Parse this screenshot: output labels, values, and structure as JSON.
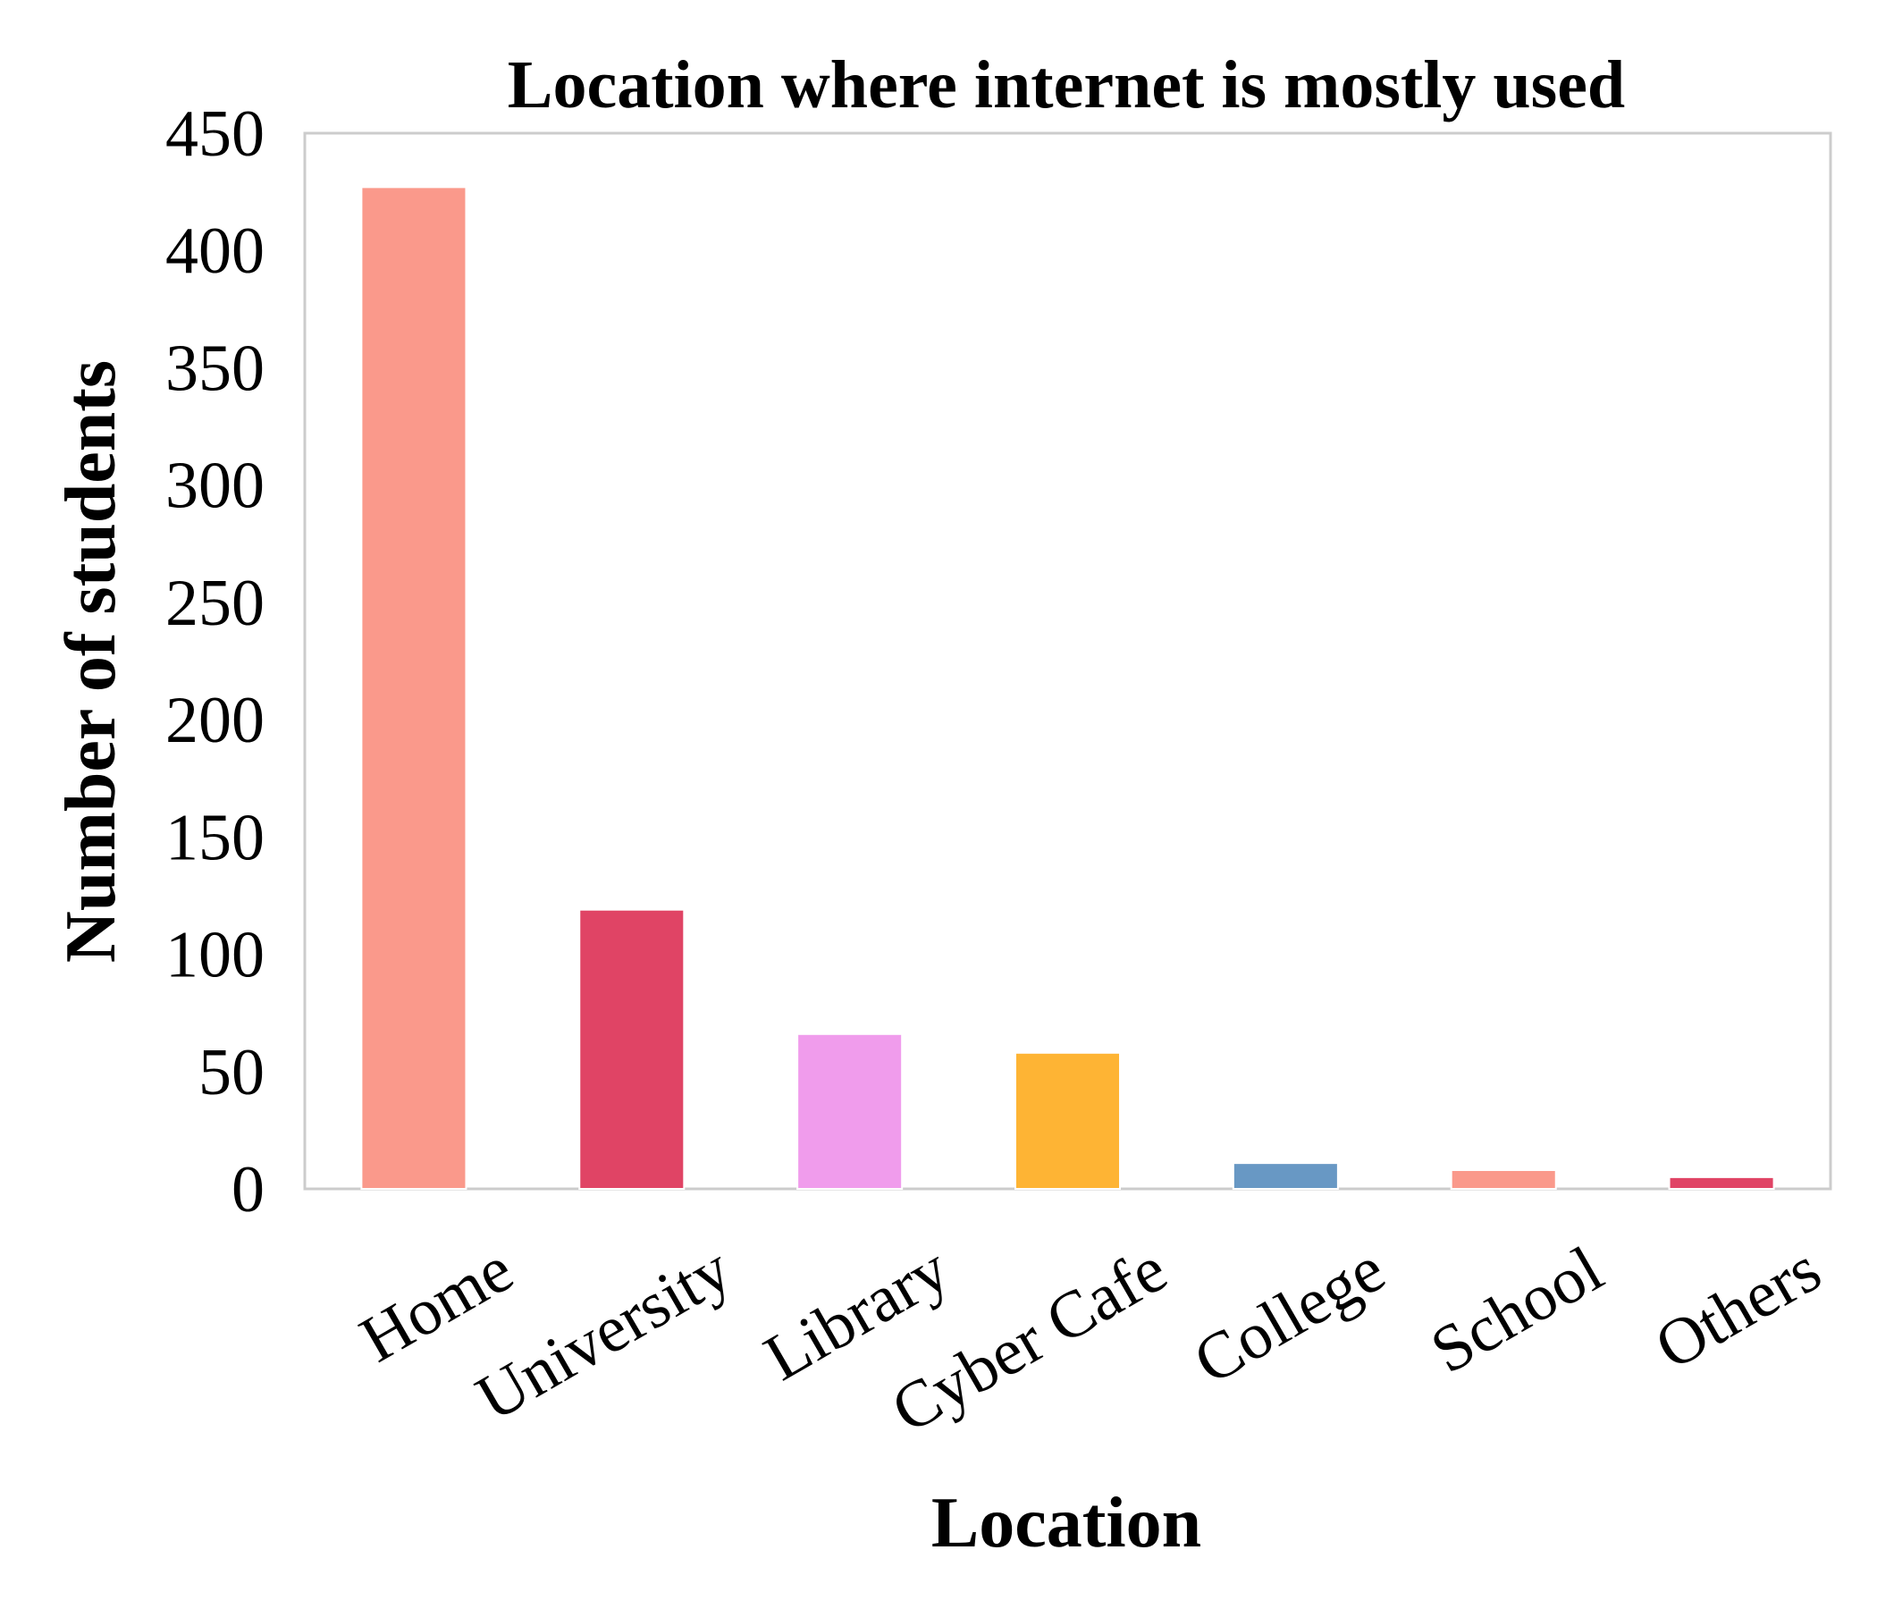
{
  "chart_data": {
    "type": "bar",
    "title": "Location where internet is mostly used",
    "xlabel": "Location",
    "ylabel": "Number of students",
    "categories": [
      "Home",
      "University",
      "Library",
      "Cyber Cafe",
      "College",
      "School",
      "Others"
    ],
    "values": [
      427,
      119,
      66,
      58,
      11,
      8,
      5
    ],
    "colors": [
      "#fa998b",
      "#e04465",
      "#f09cec",
      "#feb434",
      "#6898c4",
      "#fa998b",
      "#e04465"
    ],
    "ylim": [
      0,
      450
    ],
    "yticks": [
      0,
      50,
      100,
      150,
      200,
      250,
      300,
      350,
      400,
      450
    ],
    "grid": false
  }
}
